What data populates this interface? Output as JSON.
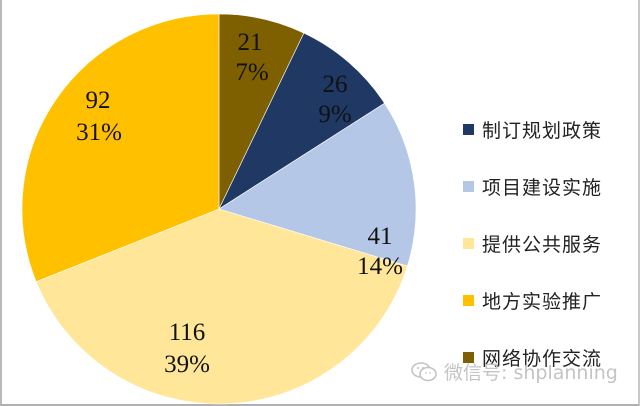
{
  "chart_data": {
    "type": "pie",
    "title": "",
    "start_angle_deg": 0,
    "direction": "clockwise",
    "total": 296,
    "slices": [
      {
        "name": "网络协作交流",
        "value": 21,
        "percent": "7%",
        "color": "#7f6000"
      },
      {
        "name": "制订规划政策",
        "value": 26,
        "percent": "9%",
        "color": "#1f3864"
      },
      {
        "name": "项目建设实施",
        "value": 41,
        "percent": "14%",
        "color": "#b4c7e7"
      },
      {
        "name": "提供公共服务",
        "value": 116,
        "percent": "39%",
        "color": "#ffe699"
      },
      {
        "name": "地方实验推广",
        "value": 92,
        "percent": "31%",
        "color": "#ffc000"
      }
    ],
    "legend_position": "right",
    "legend": [
      {
        "label": "制订规划政策",
        "color": "#1f3864"
      },
      {
        "label": "项目建设实施",
        "color": "#b4c7e7"
      },
      {
        "label": "提供公共服务",
        "color": "#ffe699"
      },
      {
        "label": "地方实验推广",
        "color": "#ffc000"
      },
      {
        "label": "网络协作交流",
        "color": "#7f6000"
      }
    ]
  },
  "labels": {
    "s0": {
      "value": "21",
      "percent": "7%"
    },
    "s1": {
      "value": "26",
      "percent": "9%"
    },
    "s2": {
      "value": "41",
      "percent": "14%"
    },
    "s3": {
      "value": "116",
      "percent": "39%"
    },
    "s4": {
      "value": "92",
      "percent": "31%"
    }
  },
  "legend": {
    "items": [
      {
        "label": "制订规划政策"
      },
      {
        "label": "项目建设实施"
      },
      {
        "label": "提供公共服务"
      },
      {
        "label": "地方实验推广"
      },
      {
        "label": "网络协作交流"
      }
    ]
  },
  "watermark": {
    "icon": "wechat-icon",
    "text": "微信号: shplanning"
  }
}
